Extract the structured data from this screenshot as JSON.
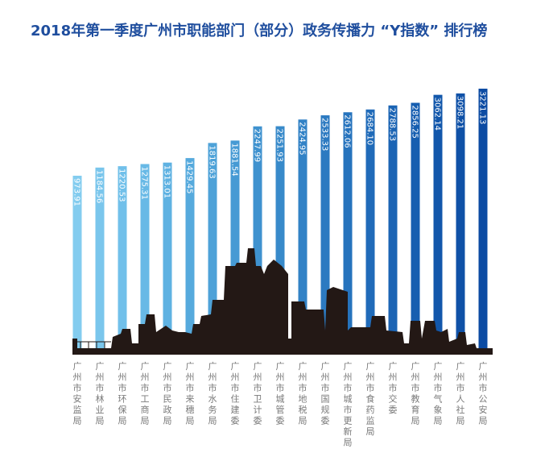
{
  "title": "2018年第一季度广州市职能部门（部分）政务传播力 “Y指数” 排行榜",
  "chart_data": {
    "type": "bar",
    "title": "2018年第一季度广州市职能部门（部分）政务传播力 “Y指数” 排行榜",
    "categories": [
      "广州市安监局",
      "广州市林业局",
      "广州市环保局",
      "广州市工商局",
      "广州市民政局",
      "广州市来穗局",
      "广州市水务局",
      "广州市住建委",
      "广州市卫计委",
      "广州市城管委",
      "广州市地税局",
      "广州市国规委",
      "广州市城市更新局",
      "广州市食药监局",
      "广州市交委",
      "广州市教育局",
      "广州市气象局",
      "广州市人社局",
      "广州市公安局"
    ],
    "value_labels": [
      "973.91",
      "1184.56",
      "1220.53",
      "1275.31",
      "1313.01",
      "1429.45",
      "1819.63",
      "1881.54",
      "2247.99",
      "2251.93",
      "2424.95",
      "2533.33",
      "2612.06",
      "2684.10",
      "2788.53",
      "2856.25",
      "3062.14",
      "3098.21",
      "3221.13"
    ],
    "values": [
      973.91,
      1184.56,
      1220.53,
      1275.31,
      1313.01,
      1429.45,
      1819.63,
      1881.54,
      2247.99,
      2251.93,
      2424.95,
      2533.33,
      2612.06,
      2684.1,
      2788.53,
      2856.25,
      3062.14,
      3098.21,
      3221.13
    ],
    "colors": [
      "#83ccef",
      "#7ac6ec",
      "#71c0ea",
      "#68b9e6",
      "#5fb2e2",
      "#56aadd",
      "#4ea2d8",
      "#469ad4",
      "#3f92cf",
      "#388aca",
      "#3282c6",
      "#2c7ac1",
      "#2673bd",
      "#206bb9",
      "#1b64b4",
      "#165eb0",
      "#1257ab",
      "#0f51a7",
      "#0c4ba3"
    ],
    "skyline_color": "#231815",
    "ylim": [
      0,
      3221.13
    ]
  }
}
